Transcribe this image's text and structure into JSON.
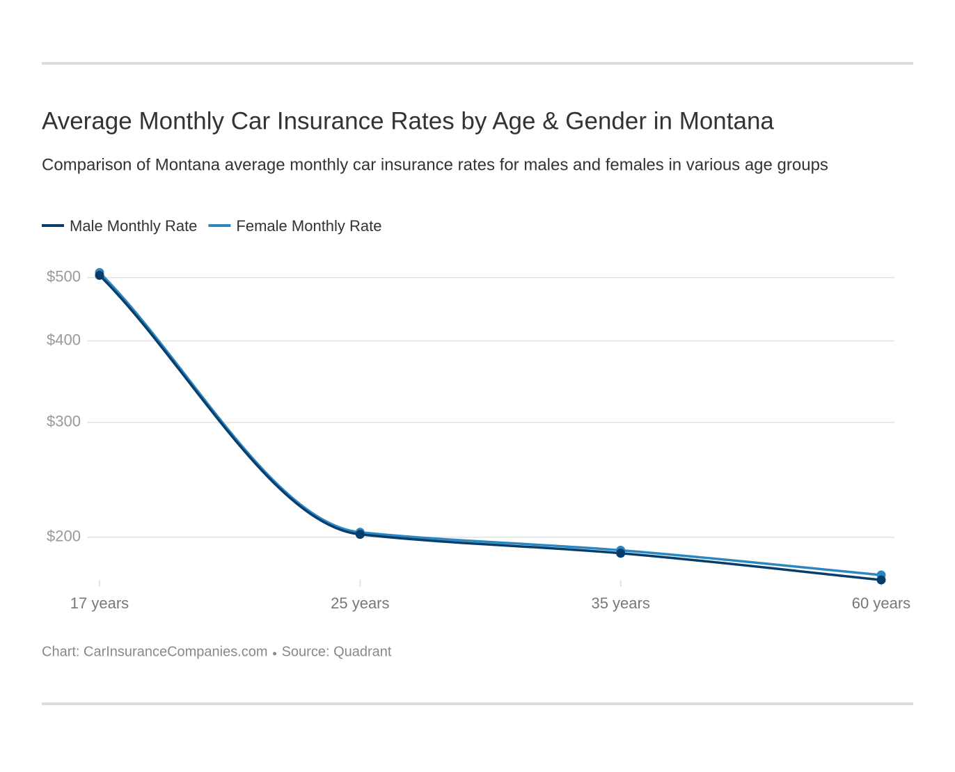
{
  "chart_data": {
    "type": "line",
    "title": "Average Monthly Car Insurance Rates by Age & Gender in Montana",
    "subtitle": "Comparison of Montana average monthly car insurance rates for males and females in various age groups",
    "categories": [
      "17 years",
      "25 years",
      "35 years",
      "60 years"
    ],
    "series": [
      {
        "name": "Male Monthly Rate",
        "color": "#063d6b",
        "values": [
          504,
          202,
          189,
          172
        ]
      },
      {
        "name": "Female Monthly Rate",
        "color": "#2b86c1",
        "values": [
          509,
          203.5,
          191,
          175
        ]
      }
    ],
    "y_scale": "log",
    "ylim": [
      165,
      550
    ],
    "yticks": [
      {
        "value": 200,
        "label": "$200"
      },
      {
        "value": 300,
        "label": "$300"
      },
      {
        "value": 400,
        "label": "$400"
      },
      {
        "value": 500,
        "label": "$500"
      }
    ],
    "grid": true,
    "legend": "top-left",
    "credit": "Chart: CarInsuranceCompanies.com",
    "source": "Source: Quadrant"
  }
}
